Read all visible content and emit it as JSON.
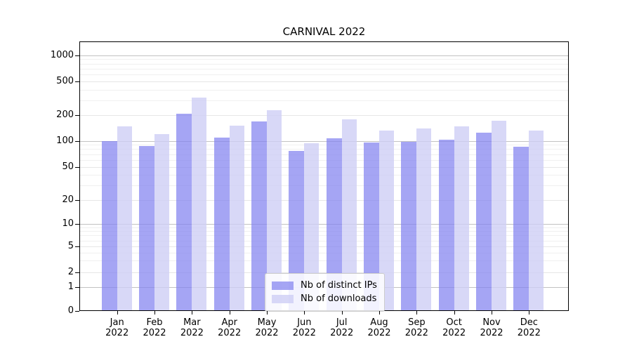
{
  "chart_data": {
    "type": "bar",
    "title": "CARNIVAL 2022",
    "categories": [
      "Jan",
      "Feb",
      "Mar",
      "Apr",
      "May",
      "Jun",
      "Jul",
      "Aug",
      "Sep",
      "Oct",
      "Nov",
      "Dec"
    ],
    "x_tick_year": "2022",
    "series": [
      {
        "name": "Nb of distinct IPs",
        "color": "#8282f0",
        "alpha": 0.72,
        "values": [
          100,
          87,
          210,
          110,
          170,
          76,
          107,
          96,
          97,
          102,
          124,
          85
        ]
      },
      {
        "name": "Nb of downloads",
        "color": "#cdcdf5",
        "alpha": 0.78,
        "values": [
          148,
          121,
          322,
          151,
          228,
          94,
          181,
          131,
          141,
          148,
          174,
          131
        ]
      }
    ],
    "y_scale": "symlog",
    "y_ticks": [
      0,
      1,
      2,
      5,
      10,
      20,
      50,
      100,
      200,
      500,
      1000
    ],
    "y_minor_ticks": [
      3,
      4,
      6,
      7,
      8,
      9,
      30,
      40,
      60,
      70,
      80,
      90,
      300,
      400,
      600,
      700,
      800,
      900
    ],
    "ylim": [
      0,
      1500
    ],
    "grid": true,
    "legend_position": "lower center"
  }
}
